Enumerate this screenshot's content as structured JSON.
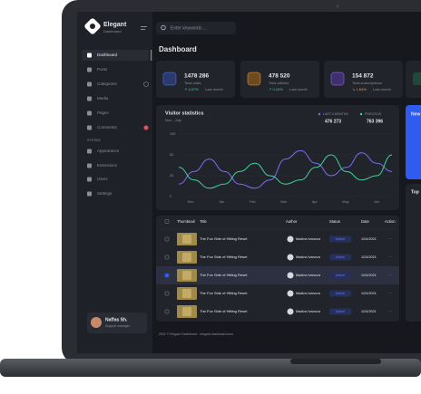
{
  "sidebar": {
    "brand": "Elegant",
    "brand_sub": "Dashboard",
    "menu": [
      "Dashboard",
      "Posts",
      "Categories",
      "Media",
      "Pages",
      "Comments"
    ],
    "section": "SYSTEM",
    "system_menu": [
      "Appearance",
      "Extensions",
      "Users",
      "Settings"
    ],
    "user": {
      "name": "Naffas Sh.",
      "role": "Support manager"
    }
  },
  "search_placeholder": "Enter keywords ...",
  "page_title": "Dashboard",
  "stats": [
    {
      "value": "1478 286",
      "label": "Total visits",
      "change": "↗ 4.07%",
      "period": "Last month"
    },
    {
      "value": "478 520",
      "label": "Total articles",
      "change": "↗ 0.24%",
      "period": "Last month"
    },
    {
      "value": "154 872",
      "label": "Total subscriptions",
      "change": "↘ 1.64%",
      "period": "Last month"
    }
  ],
  "visitor_statistics": {
    "title": "Visitor statistics",
    "range": "Nov - July",
    "yticks": [
      0,
      25,
      50,
      100
    ],
    "xlabels": [
      "Dec",
      "Jan",
      "Feb",
      "Mar",
      "Apr",
      "May",
      "Jun"
    ],
    "series": [
      {
        "name": "LAST 6 MONTHS",
        "total": "476 273",
        "color": "#7d6cf2",
        "values": [
          15,
          30,
          45,
          30,
          15,
          10,
          20,
          45,
          60,
          40,
          25,
          35,
          55,
          40,
          30
        ]
      },
      {
        "name": "PREVIOUS",
        "total": "763 396",
        "color": "#3ed598",
        "values": [
          35,
          20,
          10,
          15,
          30,
          40,
          25,
          15,
          20,
          35,
          50,
          30,
          20,
          25,
          50
        ]
      }
    ]
  },
  "table": {
    "columns": [
      "Thumbnail",
      "Title",
      "Author",
      "Status",
      "Date",
      "Action"
    ],
    "rows": [
      [
        "The Fun Side of Hitting Reset",
        "Madina Ivanova",
        "Active",
        "1/24/2021",
        "···"
      ],
      [
        "The Fun Side of Hitting Reset",
        "Madina Ivanova",
        "Active",
        "1/24/2021",
        "···"
      ],
      [
        "The Fun Side of Hitting Reset",
        "Madina Ivanova",
        "Active",
        "1/24/2021",
        "···"
      ],
      [
        "The Fun Side of Hitting Reset",
        "Madina Ivanova",
        "Active",
        "1/24/2021",
        "···"
      ],
      [
        "The Fun Side of Hitting Reset",
        "Madina Ivanova",
        "Active",
        "1/24/2021",
        "···"
      ]
    ]
  },
  "footer": "2021 © Elegant Dashboard - elegant-dashboard.com",
  "side_panel": {
    "card_title": "New",
    "top_title": "Top"
  }
}
